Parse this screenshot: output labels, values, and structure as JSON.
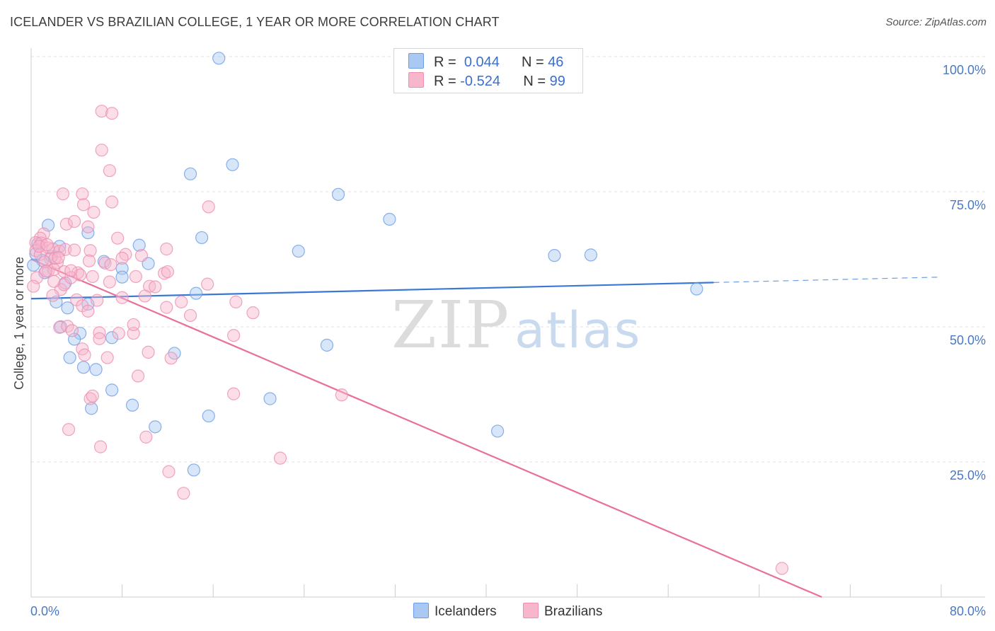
{
  "header": {
    "title": "ICELANDER VS BRAZILIAN COLLEGE, 1 YEAR OR MORE CORRELATION CHART",
    "source": "Source: ZipAtlas.com"
  },
  "watermark": {
    "zip": "ZIP",
    "atlas": "atlas"
  },
  "legend": {
    "rows": [
      {
        "r_label": "R =",
        "r_value": "0.044",
        "n_label": "N =",
        "n_value": "46",
        "color": "#a9c8f2"
      },
      {
        "r_label": "R =",
        "r_value": "-0.524",
        "n_label": "N =",
        "n_value": "99",
        "color": "#f7b6cb"
      }
    ]
  },
  "bottom_legend": {
    "items": [
      {
        "label": "Icelanders",
        "color": "#a9c8f2"
      },
      {
        "label": "Brazilians",
        "color": "#f7b6cb"
      }
    ]
  },
  "chart_data": {
    "type": "scatter",
    "title": "ICELANDER VS BRAZILIAN COLLEGE, 1 YEAR OR MORE CORRELATION CHART",
    "xlabel": "",
    "ylabel": "College, 1 year or more",
    "xlim": [
      0,
      80
    ],
    "ylim": [
      0,
      100
    ],
    "x_tick_labels": [
      "0.0%",
      "80.0%"
    ],
    "y_ticks": [
      {
        "value": 100,
        "label": "100.0%"
      },
      {
        "value": 75,
        "label": "75.0%"
      },
      {
        "value": 50,
        "label": "50.0%"
      },
      {
        "value": 25,
        "label": "25.0%"
      }
    ],
    "grid": true,
    "series": [
      {
        "name": "Icelanders",
        "color": "#6d9de6",
        "fill": "#a9c8f2",
        "r": 0.044,
        "n": 46,
        "trend": {
          "x0": 0,
          "y0": 55.2,
          "x1": 60,
          "y1": 58.2,
          "dash_to_x": 80,
          "dash_to_y": 59.2
        },
        "points": [
          [
            16.5,
            99.7
          ],
          [
            17.7,
            80.0
          ],
          [
            14.0,
            78.3
          ],
          [
            27.0,
            74.5
          ],
          [
            31.5,
            69.9
          ],
          [
            1.5,
            68.8
          ],
          [
            5.0,
            67.4
          ],
          [
            15.0,
            66.5
          ],
          [
            9.5,
            65.1
          ],
          [
            23.5,
            64.0
          ],
          [
            46.0,
            63.2
          ],
          [
            49.2,
            63.3
          ],
          [
            1.0,
            62.3
          ],
          [
            2.5,
            64.9
          ],
          [
            6.4,
            62.1
          ],
          [
            10.3,
            61.7
          ],
          [
            1.2,
            60.0
          ],
          [
            8.0,
            60.8
          ],
          [
            8.0,
            59.2
          ],
          [
            3.0,
            58.1
          ],
          [
            14.5,
            56.2
          ],
          [
            58.5,
            57.0
          ],
          [
            2.2,
            54.6
          ],
          [
            3.2,
            53.5
          ],
          [
            5.0,
            54.2
          ],
          [
            2.6,
            50.0
          ],
          [
            4.3,
            48.8
          ],
          [
            3.8,
            47.7
          ],
          [
            7.1,
            48.0
          ],
          [
            12.6,
            45.1
          ],
          [
            26.0,
            46.6
          ],
          [
            3.4,
            44.3
          ],
          [
            4.6,
            42.5
          ],
          [
            5.7,
            42.1
          ],
          [
            7.1,
            38.3
          ],
          [
            21.0,
            36.7
          ],
          [
            8.9,
            35.5
          ],
          [
            5.3,
            34.9
          ],
          [
            15.6,
            33.5
          ],
          [
            10.9,
            31.5
          ],
          [
            41.0,
            30.7
          ],
          [
            14.3,
            23.5
          ],
          [
            0.4,
            63.5
          ],
          [
            1.8,
            63.0
          ],
          [
            0.2,
            61.4
          ],
          [
            0.6,
            65.4
          ]
        ]
      },
      {
        "name": "Brazilians",
        "color": "#ee8fb0",
        "fill": "#f7b6cb",
        "r": -0.524,
        "n": 99,
        "trend": {
          "x0": 0,
          "y0": 62.5,
          "x1": 69.5,
          "y1": 0
        },
        "points": [
          [
            6.2,
            89.9
          ],
          [
            7.1,
            89.5
          ],
          [
            6.2,
            82.7
          ],
          [
            6.9,
            78.9
          ],
          [
            2.8,
            74.6
          ],
          [
            4.5,
            74.6
          ],
          [
            4.6,
            72.6
          ],
          [
            7.1,
            73.1
          ],
          [
            5.5,
            71.2
          ],
          [
            15.6,
            72.2
          ],
          [
            3.1,
            69.0
          ],
          [
            3.8,
            69.5
          ],
          [
            5.0,
            68.5
          ],
          [
            1.1,
            67.2
          ],
          [
            0.8,
            66.4
          ],
          [
            0.4,
            65.6
          ],
          [
            0.9,
            65.5
          ],
          [
            0.4,
            64.1
          ],
          [
            1.5,
            64.6
          ],
          [
            1.9,
            64.4
          ],
          [
            2.5,
            64.0
          ],
          [
            3.0,
            64.3
          ],
          [
            3.8,
            64.2
          ],
          [
            5.2,
            64.1
          ],
          [
            7.6,
            66.4
          ],
          [
            11.9,
            64.4
          ],
          [
            8.3,
            63.4
          ],
          [
            0.8,
            63.4
          ],
          [
            1.7,
            62.6
          ],
          [
            2.3,
            61.9
          ],
          [
            5.1,
            62.2
          ],
          [
            6.5,
            61.8
          ],
          [
            7.0,
            61.5
          ],
          [
            8.0,
            62.7
          ],
          [
            1.5,
            60.3
          ],
          [
            2.0,
            60.6
          ],
          [
            2.9,
            60.2
          ],
          [
            4.1,
            60.0
          ],
          [
            4.3,
            59.6
          ],
          [
            5.4,
            59.3
          ],
          [
            11.7,
            59.9
          ],
          [
            9.2,
            59.3
          ],
          [
            10.4,
            57.5
          ],
          [
            15.5,
            57.9
          ],
          [
            2.6,
            56.9
          ],
          [
            2.9,
            57.8
          ],
          [
            3.5,
            59.1
          ],
          [
            10.0,
            55.7
          ],
          [
            1.9,
            55.8
          ],
          [
            4.0,
            55.0
          ],
          [
            5.8,
            54.9
          ],
          [
            8.0,
            55.4
          ],
          [
            13.2,
            54.6
          ],
          [
            18.0,
            54.6
          ],
          [
            11.9,
            53.6
          ],
          [
            4.5,
            53.9
          ],
          [
            5.0,
            52.9
          ],
          [
            14.0,
            52.1
          ],
          [
            19.5,
            52.6
          ],
          [
            1.2,
            62.0
          ],
          [
            2.1,
            62.7
          ],
          [
            0.5,
            59.1
          ],
          [
            2.5,
            49.9
          ],
          [
            3.2,
            50.1
          ],
          [
            3.6,
            49.3
          ],
          [
            6.0,
            48.9
          ],
          [
            7.7,
            48.8
          ],
          [
            9.0,
            48.8
          ],
          [
            9.0,
            50.4
          ],
          [
            17.8,
            48.4
          ],
          [
            4.5,
            45.9
          ],
          [
            6.0,
            47.8
          ],
          [
            10.3,
            45.3
          ],
          [
            12.3,
            44.2
          ],
          [
            4.7,
            44.8
          ],
          [
            6.7,
            44.3
          ],
          [
            9.4,
            40.9
          ],
          [
            17.8,
            37.6
          ],
          [
            27.3,
            37.4
          ],
          [
            5.2,
            36.7
          ],
          [
            5.4,
            37.2
          ],
          [
            3.3,
            31.0
          ],
          [
            10.1,
            29.6
          ],
          [
            6.1,
            27.8
          ],
          [
            21.9,
            25.7
          ],
          [
            12.1,
            23.2
          ],
          [
            13.4,
            19.2
          ],
          [
            66.0,
            5.3
          ],
          [
            1.3,
            60.3
          ],
          [
            0.2,
            57.5
          ],
          [
            0.7,
            64.9
          ],
          [
            1.4,
            65.2
          ],
          [
            2.4,
            62.8
          ],
          [
            9.7,
            63.2
          ],
          [
            12.0,
            60.2
          ],
          [
            3.5,
            60.4
          ],
          [
            6.9,
            58.3
          ],
          [
            10.9,
            57.4
          ],
          [
            2.0,
            58.4
          ]
        ]
      }
    ]
  }
}
